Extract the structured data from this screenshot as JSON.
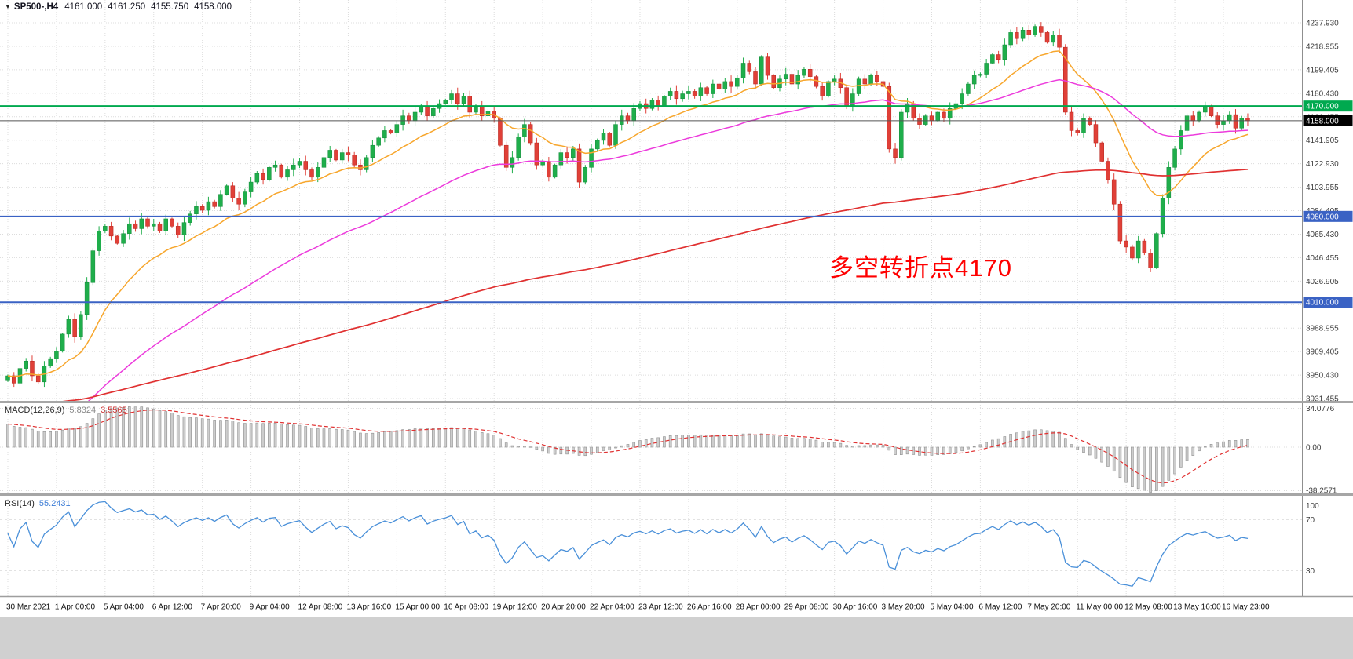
{
  "window": {
    "symbol": "SP500-,H4",
    "open": "4161.000",
    "high": "4161.250",
    "low": "4155.750",
    "close": "4158.000"
  },
  "icons": {
    "symbol_marker": "▼"
  },
  "panels": {
    "macd": {
      "name": "MACD(12,26,9)",
      "value_main": "5.8324",
      "value_signal": "3.5565"
    },
    "rsi": {
      "name": "RSI(14)",
      "value": "55.2431"
    }
  },
  "colors": {
    "up": "#1fae4b",
    "up_stroke": "#128a38",
    "down": "#e04038",
    "down_stroke": "#b3231c",
    "ma_fast": "#f7a62c",
    "ma_mid": "#ec3bdc",
    "ma_slow": "#e03131",
    "rsi_line": "#4a90d9",
    "macd_bar": "#cdcdcd",
    "macd_bar_stroke": "#909090",
    "macd_signal": "#e03131",
    "grid": "#dcdcdc",
    "axis_text": "#3c3c3c",
    "level_green": "#00a94f",
    "level_blue": "#3a62c4",
    "current_line": "#555555"
  },
  "chart_data": [
    {
      "type": "candlestick",
      "symbol": "SP500-,H4",
      "timeframe": "H4",
      "title": "SP500-,H4 4161.000 4161.250 4155.750 4158.000",
      "ylim": [
        3931.455,
        4237.93
      ],
      "y_tick_labels": [
        "4237.930",
        "4218.955",
        "4199.405",
        "4180.430",
        "4161.455",
        "4141.905",
        "4122.930",
        "4103.955",
        "4084.405",
        "4065.430",
        "4046.455",
        "4026.905",
        "4007.930",
        "3988.955",
        "3969.405",
        "3950.430",
        "3931.455"
      ],
      "x_tick_labels": [
        "30 Mar 2021",
        "1 Apr 00:00",
        "5 Apr 04:00",
        "6 Apr 12:00",
        "7 Apr 20:00",
        "9 Apr 04:00",
        "12 Apr 08:00",
        "13 Apr 16:00",
        "15 Apr 00:00",
        "16 Apr 08:00",
        "19 Apr 12:00",
        "20 Apr 20:00",
        "22 Apr 04:00",
        "23 Apr 12:00",
        "26 Apr 16:00",
        "28 Apr 00:00",
        "29 Apr 08:00",
        "30 Apr 16:00",
        "3 May 20:00",
        "5 May 04:00",
        "6 May 12:00",
        "7 May 20:00",
        "11 May 00:00",
        "12 May 08:00",
        "13 May 16:00",
        "16 May 23:00"
      ],
      "ohlc_note": "~205 H4 candles read approximately from pixels; open of each candle equals previous close; wicks approx ±1-5 pts",
      "closes": [
        3950,
        3944,
        3956,
        3962,
        3950,
        3945,
        3958,
        3964,
        3970,
        3984,
        3996,
        3982,
        4000,
        4026,
        4052,
        4068,
        4072,
        4064,
        4058,
        4066,
        4074,
        4070,
        4078,
        4072,
        4074,
        4068,
        4078,
        4072,
        4065,
        4075,
        4082,
        4088,
        4085,
        4092,
        4088,
        4098,
        4105,
        4095,
        4090,
        4100,
        4108,
        4115,
        4110,
        4120,
        4122,
        4112,
        4118,
        4122,
        4125,
        4118,
        4112,
        4120,
        4128,
        4134,
        4126,
        4132,
        4130,
        4122,
        4118,
        4128,
        4138,
        4144,
        4150,
        4148,
        4155,
        4162,
        4158,
        4165,
        4170,
        4162,
        4168,
        4172,
        4175,
        4180,
        4172,
        4178,
        4165,
        4170,
        4162,
        4166,
        4160,
        4138,
        4120,
        4128,
        4145,
        4155,
        4140,
        4122,
        4125,
        4112,
        4122,
        4132,
        4128,
        4135,
        4108,
        4120,
        4135,
        4142,
        4148,
        4138,
        4155,
        4162,
        4158,
        4168,
        4172,
        4168,
        4175,
        4170,
        4178,
        4182,
        4176,
        4180,
        4182,
        4178,
        4185,
        4180,
        4188,
        4184,
        4190,
        4186,
        4193,
        4205,
        4198,
        4188,
        4210,
        4195,
        4185,
        4192,
        4196,
        4188,
        4195,
        4200,
        4194,
        4186,
        4178,
        4190,
        4192,
        4185,
        4170,
        4180,
        4192,
        4188,
        4195,
        4190,
        4186,
        4135,
        4128,
        4165,
        4172,
        4160,
        4155,
        4162,
        4158,
        4165,
        4160,
        4168,
        4172,
        4180,
        4188,
        4195,
        4196,
        4205,
        4212,
        4208,
        4220,
        4230,
        4225,
        4232,
        4228,
        4235,
        4230,
        4222,
        4228,
        4218,
        4165,
        4150,
        4148,
        4160,
        4155,
        4140,
        4125,
        4110,
        4090,
        4060,
        4055,
        4046,
        4060,
        4050,
        4038,
        4066,
        4095,
        4120,
        4135,
        4150,
        4162,
        4158,
        4165,
        4170,
        4162,
        4155,
        4158,
        4163,
        4152,
        4160,
        4158
      ],
      "last_ohlc": {
        "open": 4161.0,
        "high": 4161.25,
        "low": 4155.75,
        "close": 4158.0
      },
      "horizontal_lines": [
        {
          "price": 4170.0,
          "label": "4170.000",
          "line_color": "#00a94f",
          "tag_color": "#00a94f",
          "width": 2
        },
        {
          "price": 4158.0,
          "label": "4158.000",
          "line_color": "#555555",
          "tag_color": "#000000",
          "width": 1
        },
        {
          "price": 4080.0,
          "label": "4080.000",
          "line_color": "#3a62c4",
          "tag_color": "#3a62c4",
          "width": 2
        },
        {
          "price": 4010.0,
          "label": "4010.000",
          "line_color": "#3a62c4",
          "tag_color": "#3a62c4",
          "width": 2
        }
      ],
      "moving_averages": [
        {
          "color": "#f7a62c",
          "approx": "fast MA hugging price (~EMA16)",
          "ema_period": 16,
          "seed": null
        },
        {
          "color": "#ec3bdc",
          "approx": "medium MA rising from below, peaks ~4190 then rolls over (~EMA55)",
          "ema_period": 55,
          "seed": 3898
        },
        {
          "color": "#e03131",
          "approx": "slow MA rising steadily 3930→~4125 (~EMA210)",
          "ema_period": 210,
          "seed": 3926
        }
      ],
      "annotation": {
        "text": "多空转折点4170",
        "color": "#ff0000"
      },
      "legend_position": "none",
      "grid": "dotted"
    },
    {
      "type": "bar",
      "name": "MACD(12,26,9)",
      "current_macd": 5.8324,
      "current_signal": 3.5565,
      "y_tick_labels": [
        "34.0776",
        "0.00",
        "-38.2571"
      ],
      "ylim": [
        -38.2571,
        34.0776
      ],
      "values_derived_from": "main closes series: histogram = EMA12-EMA26, dashed red signal = EMA9 of histogram; strongly positive (peak ~34) through early April, fades to ~0 late April, collapses to ~-38 on the 11-12 May selloff, recovers to ~+5.8 at the right edge"
    },
    {
      "type": "line",
      "name": "RSI(14)",
      "current": 55.2431,
      "y_tick_labels": [
        "100",
        "70",
        "30"
      ],
      "levels": [
        70,
        30
      ],
      "ylim": [
        0,
        100
      ],
      "values_derived_from": "main closes series via Wilder RSI(14); holds 60-75 during April rally, dips to ~45 on 19-20 Apr, plunges below 30 on 12 May, recovers to ~55 at the right edge"
    }
  ]
}
